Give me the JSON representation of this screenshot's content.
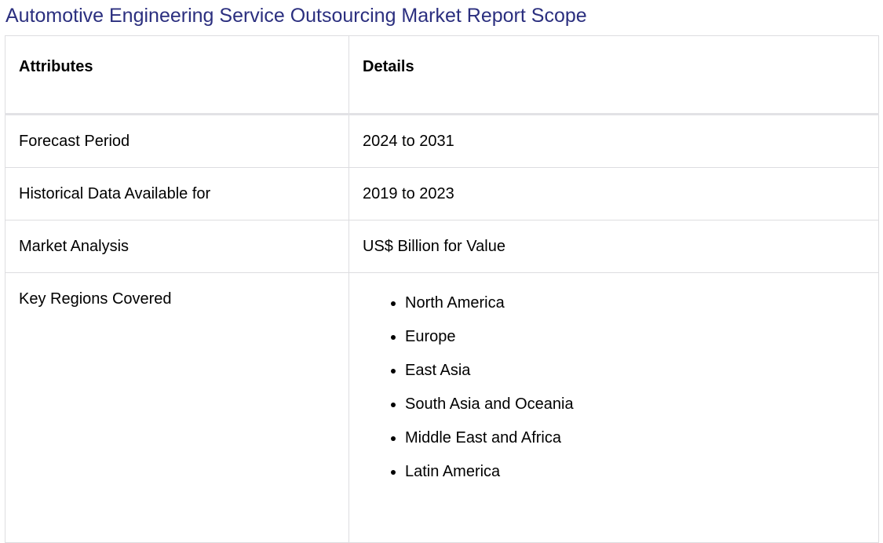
{
  "title": "Automotive Engineering Service Outsourcing Market Report Scope",
  "table": {
    "headers": [
      "Attributes",
      "Details"
    ],
    "rows": [
      {
        "attribute": "Forecast Period",
        "detail": "2024 to 2031"
      },
      {
        "attribute": "Historical Data Available for",
        "detail": "2019 to 2023"
      },
      {
        "attribute": "Market Analysis",
        "detail": "US$ Billion for Value"
      }
    ],
    "regions": {
      "attribute": "Key Regions Covered",
      "items": [
        "North America",
        "Europe",
        "East Asia",
        "South Asia and Oceania",
        "Middle East and Africa",
        "Latin America"
      ]
    }
  }
}
